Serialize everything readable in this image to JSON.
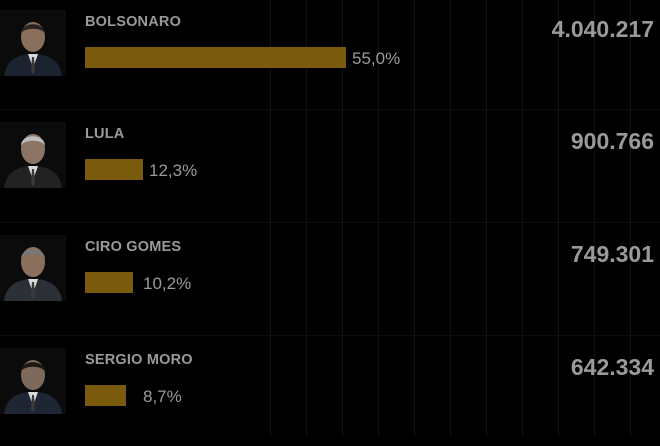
{
  "chart_data": {
    "type": "bar",
    "orientation": "horizontal",
    "bar_color": "#7a5a0c",
    "text_color": "#9a9a9a",
    "background": "#000000",
    "grid": true,
    "categories": [
      "BOLSONARO",
      "LULA",
      "CIRO GOMES",
      "SERGIO MORO"
    ],
    "values": [
      55.0,
      12.3,
      10.2,
      8.7
    ],
    "value_labels": [
      "55,0%",
      "12,3%",
      "10,2%",
      "8,7%"
    ],
    "votes": [
      "4.040.217",
      "900.766",
      "749.301",
      "642.334"
    ]
  },
  "candidates": [
    {
      "name": "BOLSONARO",
      "pct": "55,0%",
      "votes": "4.040.217",
      "avatar": "candidate-photo",
      "suit": "#1b2230",
      "skin": "#8a6f5c",
      "hair": "#2a2420"
    },
    {
      "name": "LULA",
      "pct": "12,3%",
      "votes": "900.766",
      "avatar": "candidate-photo",
      "suit": "#222222",
      "skin": "#8c7565",
      "hair": "#bdbdbd"
    },
    {
      "name": "CIRO GOMES",
      "pct": "10,2%",
      "votes": "749.301",
      "avatar": "candidate-photo",
      "suit": "#2b2f36",
      "skin": "#8a705c",
      "hair": "#777777"
    },
    {
      "name": "SERGIO MORO",
      "pct": "8,7%",
      "votes": "642.334",
      "avatar": "candidate-photo",
      "suit": "#1e2634",
      "skin": "#7e6a5a",
      "hair": "#1c1814"
    }
  ]
}
